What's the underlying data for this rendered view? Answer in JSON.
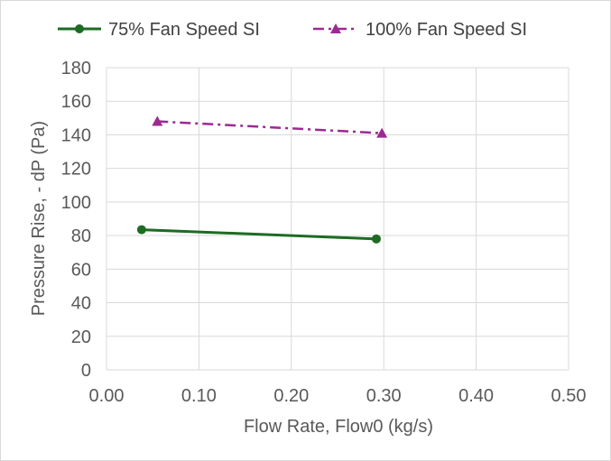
{
  "chart_data": {
    "type": "line",
    "title": "",
    "xlabel": "Flow Rate, Flow0 (kg/s)",
    "ylabel": "Pressure Rise, - dP (Pa)",
    "xlim": [
      0,
      0.5
    ],
    "ylim": [
      0,
      180
    ],
    "x_ticks": [
      "0.00",
      "0.10",
      "0.20",
      "0.30",
      "0.40",
      "0.50"
    ],
    "y_ticks": [
      "0",
      "20",
      "40",
      "60",
      "80",
      "100",
      "120",
      "140",
      "160",
      "180"
    ],
    "grid": true,
    "legend_position": "top",
    "series": [
      {
        "name": "75% Fan Speed SI",
        "color": "#1e6b24",
        "line_style": "solid",
        "marker": "circle",
        "points": [
          {
            "x": 0.038,
            "y": 83.5
          },
          {
            "x": 0.292,
            "y": 78
          }
        ]
      },
      {
        "name": "100% Fan Speed SI",
        "color": "#9b2a92",
        "line_style": "dash-dot",
        "marker": "triangle",
        "points": [
          {
            "x": 0.055,
            "y": 148
          },
          {
            "x": 0.298,
            "y": 141
          }
        ]
      }
    ]
  }
}
